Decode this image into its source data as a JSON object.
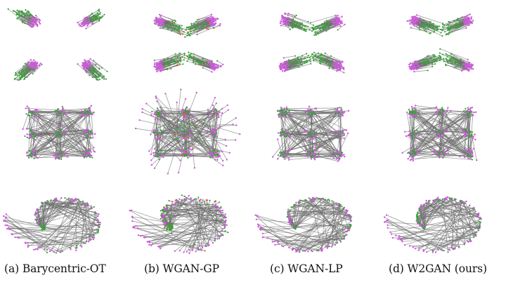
{
  "figure": {
    "columns": [
      {
        "caption": "(a) Barycentric-OT",
        "method": "barycentric"
      },
      {
        "caption": "(b) WGAN-GP",
        "method": "wgan-gp"
      },
      {
        "caption": "(c) WGAN-LP",
        "method": "wgan-lp"
      },
      {
        "caption": "(d) W2GAN (ours)",
        "method": "w2gan"
      }
    ],
    "rows": [
      "four-gaussians",
      "grid-of-gaussians",
      "swiss-roll"
    ],
    "colors": {
      "target_points": "#cc5ad9",
      "generated_points": "#3aa13a",
      "transport_lines": "#6e6e6e",
      "outlier_points": "#e0533f"
    }
  }
}
